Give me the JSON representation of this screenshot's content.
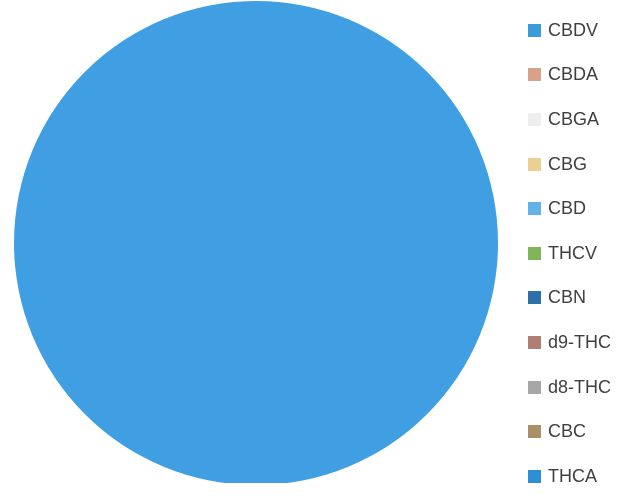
{
  "chart_data": {
    "type": "pie",
    "categories": [
      "CBDV",
      "CBDA",
      "CBGA",
      "CBG",
      "CBD",
      "THCV",
      "CBN",
      "d9-THC",
      "d8-THC",
      "CBC",
      "THCA"
    ],
    "values": [
      0,
      0,
      0,
      0,
      0,
      0,
      0,
      0,
      0,
      0,
      100
    ],
    "colors": [
      "#3b9ad9",
      "#d9a08a",
      "#eeeeee",
      "#ecd092",
      "#62b2e8",
      "#7fb65a",
      "#2f6fa8",
      "#b07e72",
      "#a7a7a7",
      "#a89068",
      "#2e8fd6"
    ],
    "legend_position": "right",
    "title": "",
    "fill_color": "#3f9fe2"
  }
}
